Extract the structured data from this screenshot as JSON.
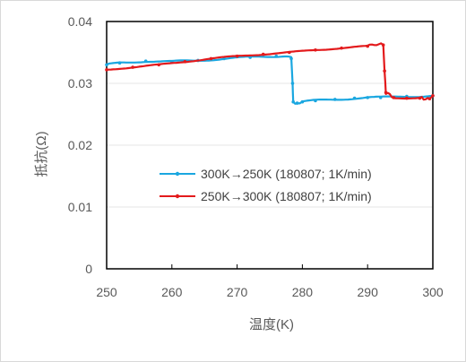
{
  "chart_data": {
    "type": "line",
    "xlabel": "温度(K)",
    "ylabel": "抵抗(Ω)",
    "xlim": [
      250,
      300
    ],
    "ylim": [
      0,
      0.04
    ],
    "xticks": [
      "250",
      "260",
      "270",
      "280",
      "290",
      "300"
    ],
    "yticks": [
      "0",
      "0.01",
      "0.02",
      "0.03",
      "0.04"
    ],
    "legend_position": "center-right",
    "series": [
      {
        "name": "300K→250K (180807; 1K/min)",
        "color": "#1aa7e0",
        "points": [
          [
            300,
            0.028
          ],
          [
            296,
            0.0279
          ],
          [
            292,
            0.0277
          ],
          [
            290,
            0.0277
          ],
          [
            288,
            0.0276
          ],
          [
            285,
            0.0274
          ],
          [
            282,
            0.0272
          ],
          [
            280,
            0.027
          ],
          [
            279.2,
            0.0268
          ],
          [
            278.6,
            0.027
          ],
          [
            278.5,
            0.03
          ],
          [
            278.3,
            0.034
          ],
          [
            276,
            0.0344
          ],
          [
            272,
            0.0342
          ],
          [
            268,
            0.034
          ],
          [
            264,
            0.0337
          ],
          [
            260,
            0.0335
          ],
          [
            256,
            0.0336
          ],
          [
            252,
            0.0333
          ],
          [
            250,
            0.033
          ]
        ]
      },
      {
        "name": "250K→300K (180807; 1K/min)",
        "color": "#e31a1c",
        "points": [
          [
            250,
            0.0322
          ],
          [
            254,
            0.0326
          ],
          [
            258,
            0.033
          ],
          [
            262,
            0.0335
          ],
          [
            266,
            0.034
          ],
          [
            270,
            0.0344
          ],
          [
            274,
            0.0347
          ],
          [
            278,
            0.035
          ],
          [
            282,
            0.0354
          ],
          [
            286,
            0.0357
          ],
          [
            290,
            0.036
          ],
          [
            292.4,
            0.0362
          ],
          [
            292.6,
            0.032
          ],
          [
            292.8,
            0.0285
          ],
          [
            294,
            0.0277
          ],
          [
            296,
            0.0276
          ],
          [
            298,
            0.0276
          ],
          [
            299.5,
            0.0275
          ],
          [
            300,
            0.028
          ]
        ]
      }
    ]
  }
}
